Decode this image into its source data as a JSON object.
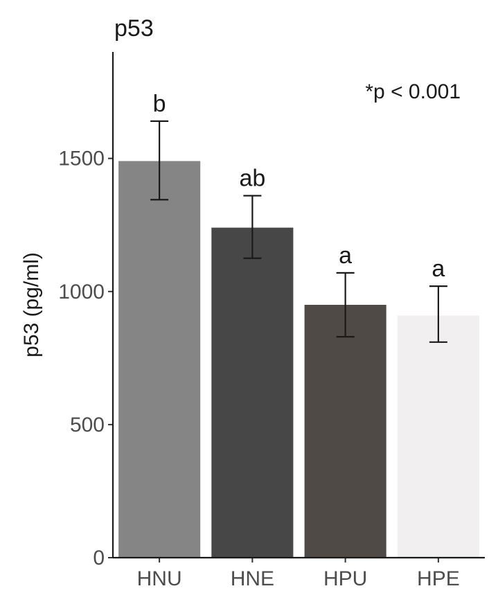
{
  "chart_data": {
    "type": "bar",
    "title": "p53",
    "xlabel": "",
    "ylabel": "p53 (pg/ml)",
    "annotation": "*p < 0.001",
    "categories": [
      "HNU",
      "HNE",
      "HPU",
      "HPE"
    ],
    "values": [
      1490,
      1240,
      950,
      910
    ],
    "error_low": [
      1345,
      1125,
      830,
      810
    ],
    "error_high": [
      1640,
      1360,
      1070,
      1020
    ],
    "significance_labels": [
      "b",
      "ab",
      "a",
      "a"
    ],
    "colors": [
      "#858585",
      "#474747",
      "#4f4a46",
      "#f1eff0"
    ],
    "ylim": [
      0,
      1900
    ],
    "yticks": [
      0,
      500,
      1000,
      1500
    ],
    "grid": false,
    "legend": "none"
  }
}
